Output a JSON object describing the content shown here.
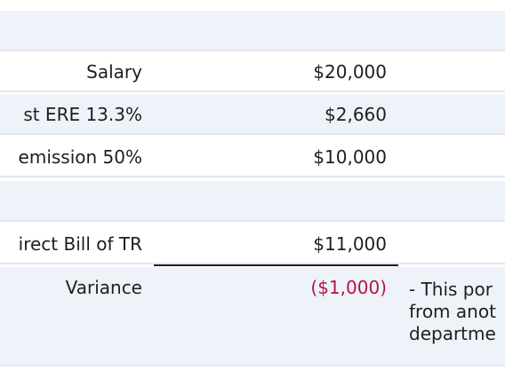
{
  "rows": [
    {
      "label": "",
      "amount": ""
    },
    {
      "label": "Salary",
      "amount": "$20,000"
    },
    {
      "label": "st ERE 13.3%",
      "amount": "$2,660"
    },
    {
      "label": "emission 50%",
      "amount": "$10,000"
    },
    {
      "label": "",
      "amount": ""
    },
    {
      "label": "irect Bill of TR",
      "amount": "$11,000"
    },
    {
      "label": "Variance",
      "amount": "($1,000)"
    }
  ],
  "note_lines": [
    "- This por",
    "from anot",
    "departme"
  ],
  "colors": {
    "band": "#eef3f9",
    "divider": "#e0e8ef",
    "text": "#1e1e1e",
    "negative": "#b5154b"
  }
}
